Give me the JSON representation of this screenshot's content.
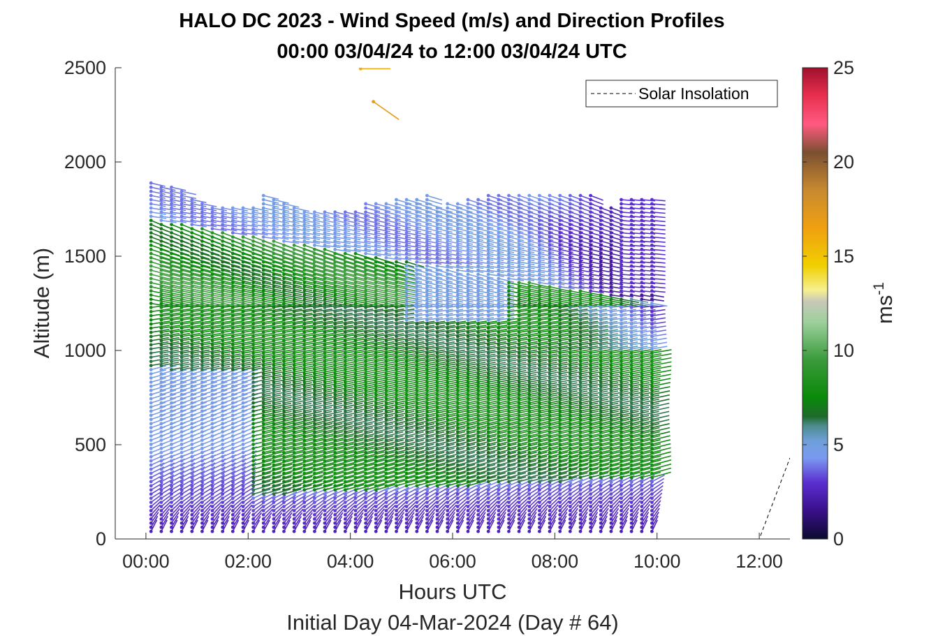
{
  "chart_data": {
    "type": "quiver",
    "title": "HALO DC 2023 - Wind Speed (m/s) and Direction Profiles",
    "subtitle": "00:00 03/04/24 to 12:00 03/04/24  UTC",
    "xlabel": "Hours UTC",
    "ylabel": "Altitude (m)",
    "footer": "Initial Day 04-Mar-2024 (Day # 64)",
    "xlim_hours": [
      -0.6,
      12.6
    ],
    "ylim": [
      0,
      2500
    ],
    "x_ticks": [
      {
        "value": 0,
        "label": "00:00"
      },
      {
        "value": 2,
        "label": "02:00"
      },
      {
        "value": 4,
        "label": "04:00"
      },
      {
        "value": 6,
        "label": "06:00"
      },
      {
        "value": 8,
        "label": "08:00"
      },
      {
        "value": 10,
        "label": "10:00"
      },
      {
        "value": 12,
        "label": "12:00"
      }
    ],
    "y_ticks": [
      0,
      500,
      1000,
      1500,
      2000,
      2500
    ],
    "colorbar": {
      "label": "ms",
      "label_exponent": "-1",
      "range": [
        0,
        25
      ],
      "ticks": [
        0,
        5,
        10,
        15,
        20,
        25
      ],
      "stops": [
        {
          "v": 0,
          "c": "#0b0b2e"
        },
        {
          "v": 1.5,
          "c": "#3a0f8a"
        },
        {
          "v": 3,
          "c": "#5a2fd0"
        },
        {
          "v": 4.3,
          "c": "#7a9af0"
        },
        {
          "v": 5.2,
          "c": "#6e9fd8"
        },
        {
          "v": 6.0,
          "c": "#4e8c90"
        },
        {
          "v": 6.5,
          "c": "#1f6a2a"
        },
        {
          "v": 7.5,
          "c": "#0a8a0a"
        },
        {
          "v": 9.5,
          "c": "#3a9a3a"
        },
        {
          "v": 11.5,
          "c": "#9cd09c"
        },
        {
          "v": 12.6,
          "c": "#c8c8b8"
        },
        {
          "v": 13.2,
          "c": "#f5f090"
        },
        {
          "v": 14.5,
          "c": "#f0d000"
        },
        {
          "v": 16.5,
          "c": "#f0a010"
        },
        {
          "v": 18.5,
          "c": "#c88a30"
        },
        {
          "v": 20.5,
          "c": "#7a5030"
        },
        {
          "v": 22.0,
          "c": "#ff5a80"
        },
        {
          "v": 23.5,
          "c": "#e83050"
        },
        {
          "v": 25,
          "c": "#a0102a"
        }
      ]
    },
    "legend": {
      "label": "Solar Insolation",
      "position": "top-right"
    },
    "solar_insolation": {
      "x": [
        -0.6,
        12.0,
        12.6
      ],
      "y": [
        0,
        0,
        430
      ]
    },
    "time_start_hours": 0.1,
    "time_step_hours": 0.2,
    "profile_count": 50,
    "isolated_barbs": [
      {
        "t": 4.45,
        "alt": 2320,
        "speed": 17,
        "dir_deg": -35
      },
      {
        "t": 4.2,
        "alt": 2495,
        "speed": 16,
        "dir_deg": 0
      }
    ]
  }
}
